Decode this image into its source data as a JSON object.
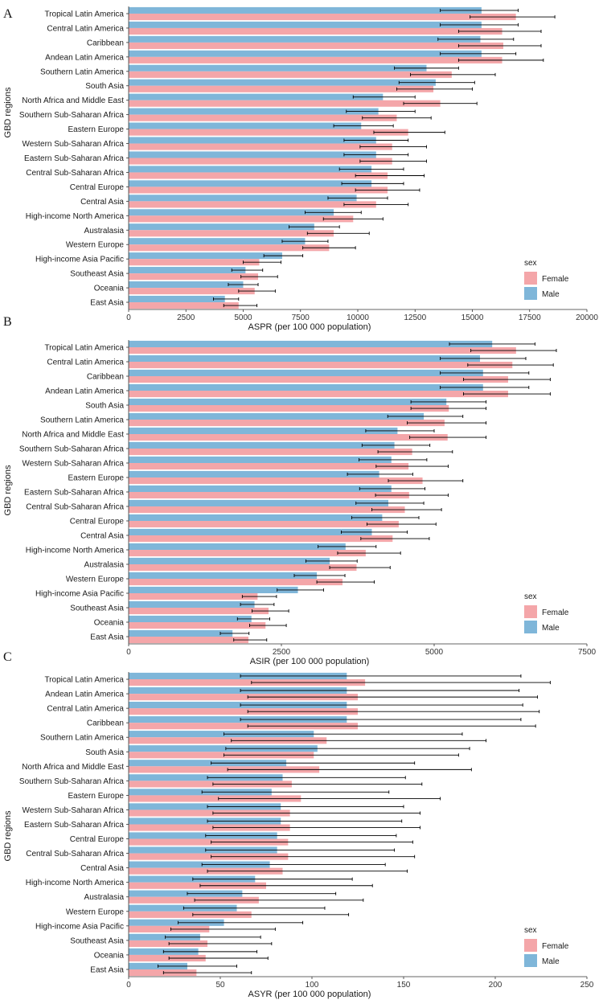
{
  "y_axis_label": "GBD regions",
  "legend": {
    "title": "sex",
    "items": [
      "Female",
      "Male"
    ]
  },
  "colors": {
    "female": "#F4A6A9",
    "male": "#7FB6D9",
    "error_bar": "#000000",
    "axis": "#333333"
  },
  "chart_data": [
    {
      "panel_label": "A",
      "type": "bar",
      "orientation": "horizontal",
      "xlabel": "ASPR (per 100 000 population)",
      "xlim": [
        0,
        20000
      ],
      "xticks": [
        "0",
        "2500",
        "5000",
        "7500",
        "10000",
        "12500",
        "15000",
        "17500",
        "20000"
      ],
      "xtick_values": [
        0,
        2500,
        5000,
        7500,
        10000,
        12500,
        15000,
        17500,
        20000
      ],
      "categories": [
        "Tropical Latin America",
        "Central Latin America",
        "Caribbean",
        "Andean Latin America",
        "Southern Latin America",
        "South Asia",
        "North Africa and Middle East",
        "Southern Sub-Saharan Africa",
        "Eastern Europe",
        "Western Sub-Saharan Africa",
        "Eastern Sub-Saharan Africa",
        "Central Sub-Saharan Africa",
        "Central Europe",
        "Central Asia",
        "High-income North America",
        "Australasia",
        "Western Europe",
        "High-income Asia Pacific",
        "Southeast Asia",
        "Oceania",
        "East Asia"
      ],
      "series": [
        {
          "name": "Male",
          "values": [
            15400,
            15400,
            15350,
            15400,
            13000,
            13400,
            11100,
            10900,
            10150,
            10800,
            10800,
            10600,
            10600,
            9950,
            8950,
            8100,
            7700,
            6700,
            5100,
            5000,
            4200
          ],
          "lower": [
            13600,
            13600,
            13500,
            13600,
            11600,
            11800,
            9800,
            9500,
            8950,
            9400,
            9400,
            9200,
            9300,
            8700,
            7700,
            7000,
            6700,
            5900,
            4500,
            4350,
            3700
          ],
          "upper": [
            17000,
            17000,
            16800,
            16900,
            14400,
            15100,
            12500,
            12500,
            11550,
            12200,
            12200,
            12000,
            12000,
            11300,
            10150,
            9200,
            8700,
            7600,
            5850,
            5650,
            4800
          ]
        },
        {
          "name": "Female",
          "values": [
            16900,
            16300,
            16350,
            16300,
            14100,
            13300,
            13600,
            11700,
            12200,
            11500,
            11500,
            11300,
            11300,
            10800,
            9800,
            8950,
            8750,
            5700,
            5650,
            5500,
            4800
          ],
          "lower": [
            14900,
            14400,
            14400,
            14400,
            12300,
            11700,
            12000,
            10200,
            10700,
            10100,
            10100,
            9900,
            9900,
            9400,
            8500,
            7800,
            7600,
            5000,
            4900,
            4800,
            4150
          ],
          "upper": [
            18600,
            18000,
            18000,
            18100,
            16000,
            15000,
            15200,
            13200,
            13800,
            13000,
            13000,
            12900,
            12700,
            12200,
            11100,
            10500,
            9900,
            6650,
            6500,
            6400,
            5600
          ]
        }
      ]
    },
    {
      "panel_label": "B",
      "type": "bar",
      "orientation": "horizontal",
      "xlabel": "ASIR (per 100 000 population)",
      "xlim": [
        0,
        7500
      ],
      "xticks": [
        "0",
        "2500",
        "5000",
        "7500"
      ],
      "xtick_values": [
        0,
        2500,
        5000,
        7500
      ],
      "categories": [
        "Tropical Latin America",
        "Central Latin America",
        "Caribbean",
        "Andean Latin America",
        "South Asia",
        "Southern Latin America",
        "North Africa and Middle East",
        "Southern Sub-Saharan Africa",
        "Western Sub-Saharan Africa",
        "Eastern Europe",
        "Eastern Sub-Saharan Africa",
        "Central Sub-Saharan Africa",
        "Central Europe",
        "Central Asia",
        "High-income North America",
        "Australasia",
        "Western Europe",
        "High-income Asia Pacific",
        "Southeast Asia",
        "Oceania",
        "East Asia"
      ],
      "series": [
        {
          "name": "Male",
          "values": [
            5950,
            5750,
            5800,
            5800,
            5200,
            4830,
            4400,
            4350,
            4300,
            4100,
            4300,
            4250,
            4150,
            3980,
            3550,
            3290,
            3080,
            2770,
            2060,
            2010,
            1700
          ],
          "lower": [
            5250,
            5100,
            5100,
            5100,
            4620,
            4240,
            3880,
            3820,
            3770,
            3580,
            3780,
            3720,
            3650,
            3480,
            3100,
            2900,
            2710,
            2430,
            1830,
            1780,
            1500
          ],
          "upper": [
            6650,
            6500,
            6550,
            6550,
            5850,
            5470,
            5000,
            4930,
            4880,
            4650,
            4850,
            4830,
            4750,
            4560,
            4050,
            3740,
            3540,
            3190,
            2380,
            2310,
            1970
          ]
        },
        {
          "name": "Female",
          "values": [
            6340,
            6280,
            6210,
            6210,
            5240,
            5170,
            5220,
            4640,
            4580,
            4810,
            4590,
            4520,
            4420,
            4320,
            3880,
            3730,
            3500,
            2110,
            2290,
            2240,
            1960
          ],
          "lower": [
            5600,
            5550,
            5480,
            5480,
            4620,
            4560,
            4600,
            4080,
            4050,
            4250,
            4040,
            3980,
            3900,
            3800,
            3420,
            3290,
            3080,
            1860,
            2020,
            1980,
            1720
          ],
          "upper": [
            7000,
            6950,
            6900,
            6900,
            5850,
            5850,
            5850,
            5300,
            5230,
            5470,
            5230,
            5120,
            5030,
            4920,
            4450,
            4280,
            4020,
            2420,
            2620,
            2580,
            2260
          ]
        }
      ]
    },
    {
      "panel_label": "C",
      "type": "bar",
      "orientation": "horizontal",
      "xlabel": "ASYR (per 100 000 population)",
      "xlim": [
        0,
        250
      ],
      "xticks": [
        "0",
        "50",
        "100",
        "150",
        "200",
        "250"
      ],
      "xtick_values": [
        0,
        50,
        100,
        150,
        200,
        250
      ],
      "categories": [
        "Tropical Latin America",
        "Andean Latin America",
        "Central Latin America",
        "Caribbean",
        "Southern Latin America",
        "South Asia",
        "North Africa and Middle East",
        "Southern Sub-Saharan Africa",
        "Eastern Europe",
        "Western Sub-Saharan Africa",
        "Eastern Sub-Saharan Africa",
        "Central Europe",
        "Central Sub-Saharan Africa",
        "Central Asia",
        "High-income North America",
        "Australasia",
        "Western Europe",
        "High-income Asia Pacific",
        "Southeast Asia",
        "Oceania",
        "East Asia"
      ],
      "series": [
        {
          "name": "Male",
          "values": [
            119,
            119,
            119,
            119,
            101,
            103,
            86,
            84,
            78,
            83,
            83,
            81,
            81,
            77,
            69,
            62,
            59,
            52,
            39,
            38,
            32
          ],
          "lower": [
            61,
            61,
            61,
            61,
            52,
            53,
            45,
            43,
            40,
            43,
            43,
            42,
            42,
            40,
            35,
            32,
            30,
            27,
            20,
            19,
            16
          ],
          "upper": [
            214,
            213,
            215,
            214,
            182,
            186,
            156,
            151,
            142,
            150,
            149,
            146,
            145,
            140,
            122,
            113,
            107,
            95,
            72,
            70,
            59
          ]
        },
        {
          "name": "Female",
          "values": [
            129,
            125,
            125,
            125,
            108,
            101,
            104,
            89,
            94,
            88,
            88,
            87,
            87,
            84,
            75,
            71,
            67,
            44,
            43,
            42,
            37
          ],
          "lower": [
            67,
            65,
            65,
            65,
            56,
            52,
            54,
            46,
            49,
            46,
            46,
            45,
            45,
            43,
            39,
            36,
            35,
            23,
            22,
            22,
            19
          ],
          "upper": [
            230,
            223,
            224,
            222,
            195,
            180,
            187,
            160,
            170,
            159,
            159,
            155,
            156,
            152,
            133,
            128,
            120,
            80,
            78,
            76,
            67
          ]
        }
      ]
    }
  ]
}
